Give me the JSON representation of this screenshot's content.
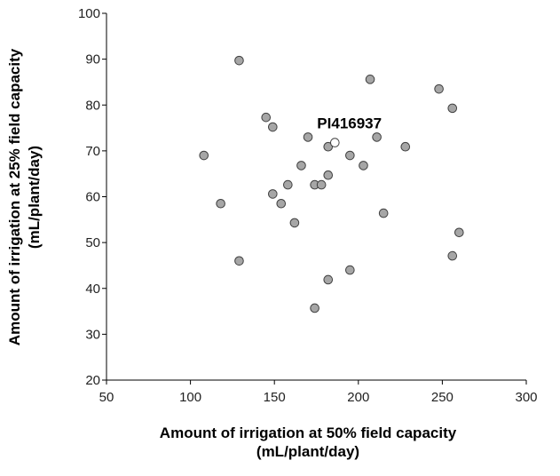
{
  "chart_data": {
    "type": "scatter",
    "xlabel_lines": [
      "Amount of irrigation at 50% field capacity",
      "(mL/plant/day)"
    ],
    "ylabel_lines": [
      "Amount of irrigation at 25% field capacity",
      "(mL/plant/day)"
    ],
    "xlim": [
      50,
      300
    ],
    "ylim": [
      20,
      100
    ],
    "xticks": [
      50,
      100,
      150,
      200,
      250,
      300
    ],
    "yticks": [
      20,
      30,
      40,
      50,
      60,
      70,
      80,
      90,
      100
    ],
    "grid": false,
    "colors": {
      "point_fill": "#a6a6a6",
      "highlight_fill": "#ffffff",
      "stroke": "#404040",
      "axis": "#000000"
    },
    "points": [
      {
        "x": 108,
        "y": 69
      },
      {
        "x": 118,
        "y": 58.5
      },
      {
        "x": 129,
        "y": 89.7
      },
      {
        "x": 129,
        "y": 46
      },
      {
        "x": 145,
        "y": 77.3
      },
      {
        "x": 149,
        "y": 75.2
      },
      {
        "x": 149,
        "y": 60.6
      },
      {
        "x": 154,
        "y": 58.5
      },
      {
        "x": 158,
        "y": 62.6
      },
      {
        "x": 162,
        "y": 54.3
      },
      {
        "x": 166,
        "y": 66.8
      },
      {
        "x": 170,
        "y": 73
      },
      {
        "x": 174,
        "y": 62.6
      },
      {
        "x": 174,
        "y": 35.7
      },
      {
        "x": 178,
        "y": 62.6
      },
      {
        "x": 182,
        "y": 64.7
      },
      {
        "x": 182,
        "y": 70.9
      },
      {
        "x": 182,
        "y": 41.9
      },
      {
        "x": 195,
        "y": 69
      },
      {
        "x": 195,
        "y": 44
      },
      {
        "x": 203,
        "y": 66.8
      },
      {
        "x": 207,
        "y": 85.6
      },
      {
        "x": 211,
        "y": 73
      },
      {
        "x": 215,
        "y": 56.4
      },
      {
        "x": 228,
        "y": 70.9
      },
      {
        "x": 248,
        "y": 83.5
      },
      {
        "x": 256,
        "y": 79.3
      },
      {
        "x": 256,
        "y": 47.1
      },
      {
        "x": 260,
        "y": 52.2
      }
    ],
    "highlight": {
      "x": 186,
      "y": 71.8,
      "label": "PI416937"
    }
  }
}
